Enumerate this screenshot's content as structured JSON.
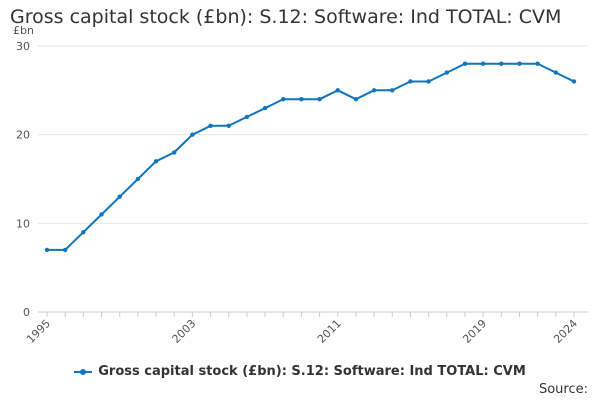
{
  "chart_data": {
    "type": "line",
    "title": "Gross capital stock (£bn): S.12: Software: Ind TOTAL: CVM",
    "ylabel": "£bn",
    "xlabel": "",
    "x": [
      1995,
      1996,
      1997,
      1998,
      1999,
      2000,
      2001,
      2002,
      2003,
      2004,
      2005,
      2006,
      2007,
      2008,
      2009,
      2010,
      2011,
      2012,
      2013,
      2014,
      2015,
      2016,
      2017,
      2018,
      2019,
      2020,
      2021,
      2022,
      2023,
      2024
    ],
    "series": [
      {
        "name": "Gross capital stock (£bn): S.12: Software: Ind TOTAL: CVM",
        "values": [
          7,
          7,
          9,
          11,
          13,
          15,
          17,
          18,
          20,
          21,
          21,
          22,
          23,
          24,
          24,
          24,
          25,
          24,
          25,
          25,
          26,
          26,
          27,
          28,
          28,
          28,
          28,
          28,
          27,
          26
        ]
      }
    ],
    "xlim": [
      1995,
      2024
    ],
    "ylim": [
      0,
      30
    ],
    "x_ticks": [
      1995,
      2003,
      2011,
      2019,
      2024
    ],
    "y_ticks": [
      0,
      10,
      20,
      30
    ],
    "grid": "horizontal",
    "legend_position": "bottom",
    "line_color": "#0f75bc"
  },
  "source_label": "Source:"
}
